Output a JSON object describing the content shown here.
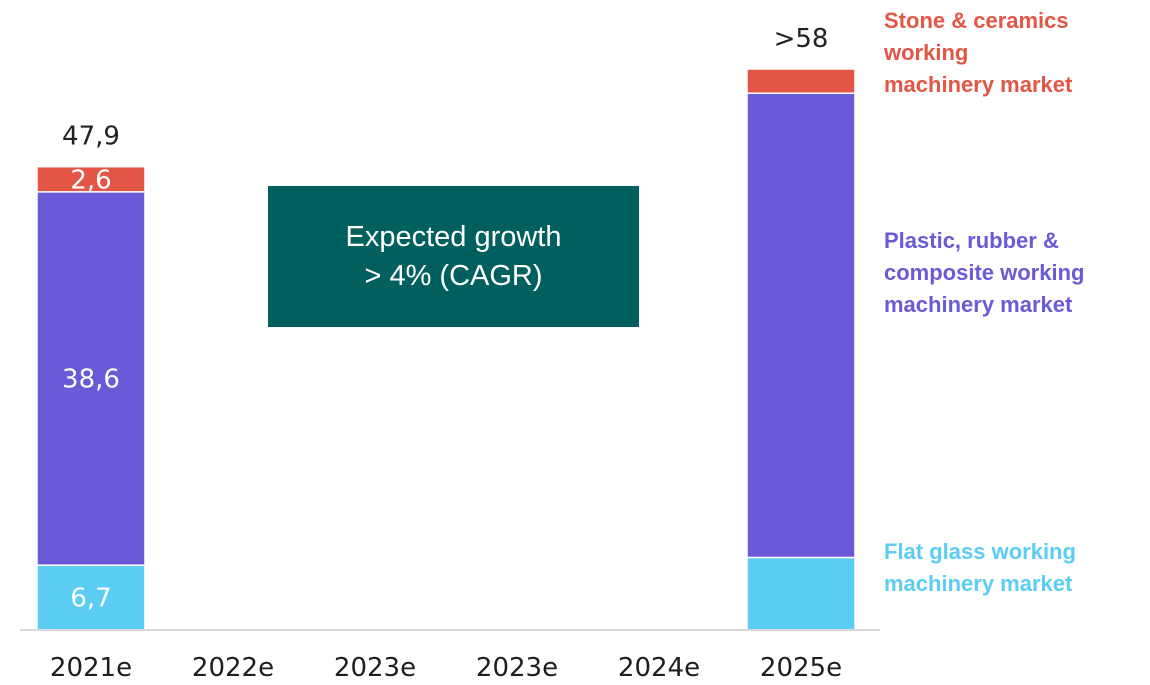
{
  "chart_data": {
    "type": "bar",
    "stacked": true,
    "categories": [
      "2021e",
      "2022e",
      "2023e",
      "2023e",
      "2024e",
      "2025e"
    ],
    "series": [
      {
        "name": "Flat glass working machinery market",
        "color": "#5bcdf5",
        "values": [
          6.7,
          null,
          null,
          null,
          null,
          7.5
        ]
      },
      {
        "name": "Plastic, rubber & composite working machinery market",
        "color": "#6a5ad8",
        "values": [
          38.6,
          null,
          null,
          null,
          null,
          48.0
        ]
      },
      {
        "name": "Stone & ceramics working machinery market",
        "color": "#e35545",
        "values": [
          2.6,
          null,
          null,
          null,
          null,
          2.5
        ]
      }
    ],
    "segment_labels": [
      [
        "6,7",
        "38,6",
        "2,6"
      ],
      [],
      [],
      [],
      [],
      []
    ],
    "totals": [
      "47,9",
      "",
      "",
      "",
      "",
      ">58"
    ],
    "ylim": [
      0,
      58
    ],
    "legend_position": "right",
    "grid": false
  },
  "legend": {
    "stone": [
      "Stone & ceramics",
      "working",
      "machinery market"
    ],
    "plastic": [
      "Plastic, rubber &",
      "composite working",
      "machinery market"
    ],
    "flat": [
      "Flat glass working",
      "machinery market"
    ]
  },
  "callout": {
    "line1": "Expected growth",
    "line2": "> 4% (CAGR)",
    "color": "#01605e"
  },
  "colors": {
    "axis": "#d9d9d9"
  }
}
